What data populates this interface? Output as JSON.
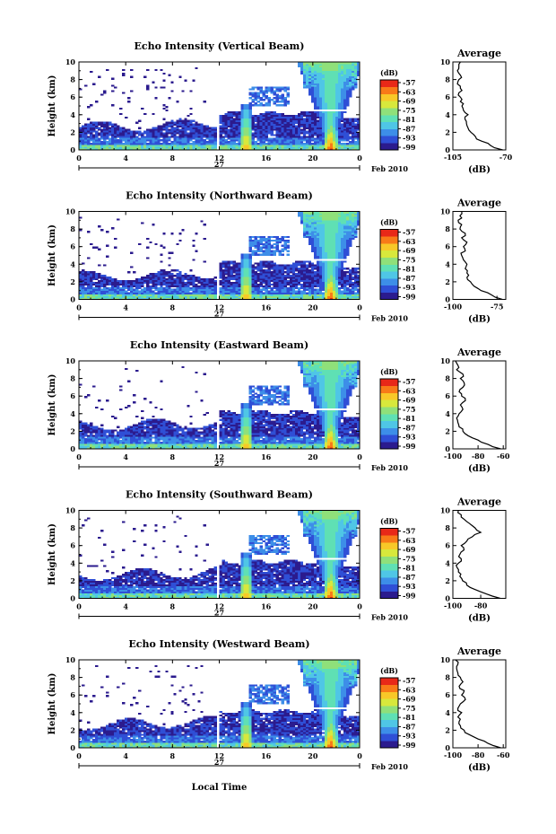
{
  "colors": {
    "scale": [
      "#2b1b8e",
      "#2f4fd6",
      "#3d8ee8",
      "#4fc6e6",
      "#5fe0b4",
      "#8fe07a",
      "#d8e83c",
      "#f8c828",
      "#f87a18",
      "#e82818"
    ],
    "background": "#ffffff",
    "line": "#000000"
  },
  "footer": {
    "xlabel": "Local Time"
  },
  "chart_data": [
    {
      "type": "heatmap",
      "title": "Echo Intensity (Vertical Beam)",
      "ylabel": "Height (km)",
      "ylim": [
        0,
        10
      ],
      "yticks": [
        "0",
        "2",
        "4",
        "6",
        "8",
        "10"
      ],
      "xticks": [
        "0",
        "4",
        "8",
        "12",
        "16",
        "20",
        "0"
      ],
      "date_label": "27",
      "month_label": "Feb 2010",
      "colorbar": {
        "unit": "(dB)",
        "ticks": [
          "-57",
          "-63",
          "-69",
          "-75",
          "-81",
          "-87",
          "-93",
          "-99"
        ]
      },
      "profile": {
        "title": "Average",
        "xlabel": "(dB)",
        "xticks": [
          "-105",
          "-70"
        ],
        "xlim": [
          -105,
          -70
        ],
        "yticks": [
          "0",
          "2",
          "4",
          "6",
          "8",
          "10"
        ],
        "height": [
          0,
          0.5,
          1,
          1.5,
          2,
          2.5,
          3,
          3.5,
          4,
          4.5,
          5,
          5.5,
          6,
          6.5,
          7,
          7.5,
          8,
          8.5,
          9,
          9.5,
          10
        ],
        "value": [
          -72,
          -80,
          -86,
          -90,
          -93,
          -95,
          -96,
          -97,
          -95,
          -98,
          -99,
          -100,
          -100,
          -101,
          -100,
          -102,
          -101,
          -100,
          -102,
          -101,
          -100
        ]
      }
    },
    {
      "type": "heatmap",
      "title": "Echo Intensity (Northward Beam)",
      "ylabel": "Height (km)",
      "ylim": [
        0,
        10
      ],
      "yticks": [
        "0",
        "2",
        "4",
        "6",
        "8",
        "10"
      ],
      "xticks": [
        "0",
        "4",
        "8",
        "12",
        "16",
        "20",
        "0"
      ],
      "date_label": "27",
      "month_label": "Feb 2010",
      "colorbar": {
        "unit": "(dB)",
        "ticks": [
          "-57",
          "-63",
          "-69",
          "-75",
          "-81",
          "-87",
          "-93",
          "-99"
        ]
      },
      "profile": {
        "title": "Average",
        "xlabel": "(dB)",
        "xticks": [
          "-100",
          "-75"
        ],
        "xlim": [
          -100,
          -70
        ],
        "yticks": [
          "0",
          "2",
          "4",
          "6",
          "8",
          "10"
        ],
        "height": [
          0,
          0.5,
          1,
          1.5,
          2,
          2.5,
          3,
          3.5,
          4,
          4.5,
          5,
          5.5,
          6,
          6.5,
          7,
          7.5,
          8,
          8.5,
          9,
          9.5,
          10
        ],
        "value": [
          -72,
          -78,
          -84,
          -88,
          -90,
          -92,
          -92,
          -93,
          -92,
          -94,
          -95,
          -93,
          -94,
          -92,
          -95,
          -93,
          -96,
          -95,
          -97,
          -96,
          -95
        ]
      }
    },
    {
      "type": "heatmap",
      "title": "Echo Intensity (Eastward Beam)",
      "ylabel": "Height (km)",
      "ylim": [
        0,
        10
      ],
      "yticks": [
        "0",
        "2",
        "4",
        "6",
        "8",
        "10"
      ],
      "xticks": [
        "0",
        "4",
        "8",
        "12",
        "16",
        "20",
        "0"
      ],
      "date_label": "27",
      "month_label": "Feb 2010",
      "colorbar": {
        "unit": "(dB)",
        "ticks": [
          "-57",
          "-63",
          "-69",
          "-75",
          "-81",
          "-87",
          "-93",
          "-99"
        ]
      },
      "profile": {
        "title": "Average",
        "xlabel": "(dB)",
        "xticks": [
          "-100",
          "-80",
          "-60"
        ],
        "xlim": [
          -100,
          -58
        ],
        "yticks": [
          "0",
          "2",
          "4",
          "6",
          "8",
          "10"
        ],
        "height": [
          0,
          0.5,
          1,
          1.5,
          2,
          2.5,
          3,
          3.5,
          4,
          4.5,
          5,
          5.5,
          6,
          6.5,
          7,
          7.5,
          8,
          8.5,
          9,
          9.5,
          10
        ],
        "value": [
          -62,
          -72,
          -80,
          -88,
          -92,
          -95,
          -96,
          -97,
          -95,
          -92,
          -94,
          -90,
          -93,
          -95,
          -92,
          -91,
          -94,
          -92,
          -97,
          -96,
          -98
        ]
      }
    },
    {
      "type": "heatmap",
      "title": "Echo Intensity (Southward Beam)",
      "ylabel": "Height (km)",
      "ylim": [
        0,
        10
      ],
      "yticks": [
        "0",
        "2",
        "4",
        "6",
        "8",
        "10"
      ],
      "xticks": [
        "0",
        "4",
        "8",
        "12",
        "16",
        "20",
        "0"
      ],
      "date_label": "27",
      "month_label": "Feb 2010",
      "colorbar": {
        "unit": "(dB)",
        "ticks": [
          "-57",
          "-63",
          "-69",
          "-75",
          "-81",
          "-87",
          "-93",
          "-99"
        ]
      },
      "profile": {
        "title": "Average",
        "xlabel": "(dB)",
        "xticks": [
          "-100",
          "-80"
        ],
        "xlim": [
          -100,
          -62
        ],
        "yticks": [
          "0",
          "2",
          "4",
          "6",
          "8",
          "10"
        ],
        "height": [
          0,
          0.5,
          1,
          1.5,
          2,
          2.5,
          3,
          3.5,
          4,
          4.5,
          5,
          5.5,
          6,
          6.5,
          7,
          7.5,
          8,
          8.5,
          9,
          9.5,
          10
        ],
        "value": [
          -66,
          -76,
          -84,
          -90,
          -93,
          -95,
          -96,
          -97,
          -96,
          -94,
          -95,
          -92,
          -94,
          -90,
          -86,
          -80,
          -84,
          -88,
          -92,
          -94,
          -96
        ]
      }
    },
    {
      "type": "heatmap",
      "title": "Echo Intensity (Westward Beam)",
      "ylabel": "Height (km)",
      "ylim": [
        0,
        10
      ],
      "yticks": [
        "0",
        "2",
        "4",
        "6",
        "8",
        "10"
      ],
      "xticks": [
        "0",
        "4",
        "8",
        "12",
        "16",
        "20",
        "0"
      ],
      "date_label": "27",
      "month_label": "Feb 2010",
      "colorbar": {
        "unit": "(dB)",
        "ticks": [
          "-57",
          "-63",
          "-69",
          "-75",
          "-81",
          "-87",
          "-93",
          "-99"
        ]
      },
      "profile": {
        "title": "Average",
        "xlabel": "(dB)",
        "xticks": [
          "-100",
          "-80",
          "-60"
        ],
        "xlim": [
          -100,
          -58
        ],
        "yticks": [
          "0",
          "2",
          "4",
          "6",
          "8",
          "10"
        ],
        "height": [
          0,
          0.5,
          1,
          1.5,
          2,
          2.5,
          3,
          3.5,
          4,
          4.5,
          5,
          5.5,
          6,
          6.5,
          7,
          7.5,
          8,
          8.5,
          9,
          9.5,
          10
        ],
        "value": [
          -62,
          -72,
          -80,
          -87,
          -91,
          -94,
          -95,
          -96,
          -93,
          -96,
          -94,
          -90,
          -93,
          -91,
          -95,
          -92,
          -94,
          -96,
          -97,
          -96,
          -98
        ]
      }
    }
  ]
}
